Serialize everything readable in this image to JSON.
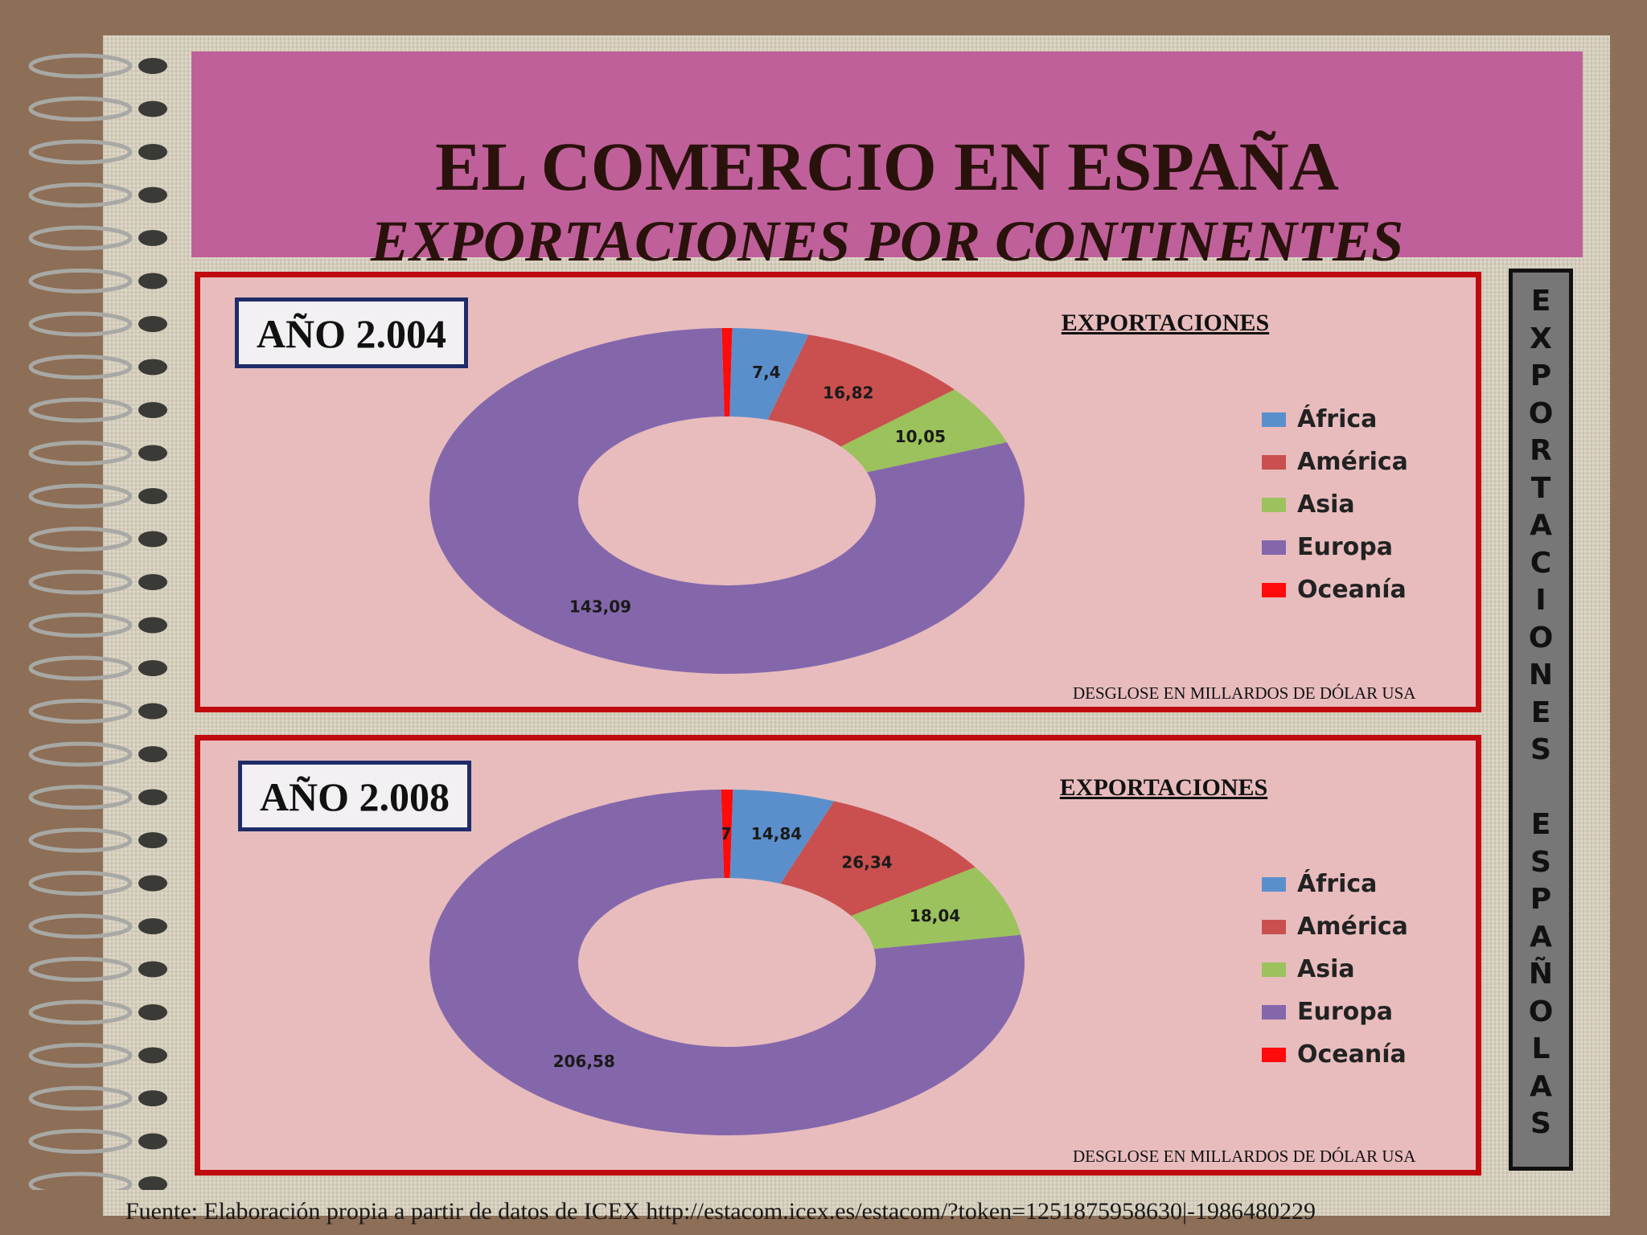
{
  "header": {
    "title": "EL COMERCIO EN ESPAÑA",
    "subtitle": "EXPORTACIONES POR CONTINENTES"
  },
  "sidebar_text": "EXPORTACIONES ESPAÑOLAS",
  "footer": "Fuente: Elaboración propia a partir de datos de ICEX http://estacom.icex.es/estacom/?token=1251875958630|-1986480229",
  "colors": {
    "África": "#5b8fcc",
    "América": "#c9504f",
    "Asia": "#9bc25c",
    "Europa": "#8467ab",
    "Oceanía": "#ff0b0b"
  },
  "chart_data": [
    {
      "type": "pie",
      "year_label": "AÑO 2.004",
      "title": "EXPORTACIONES",
      "note": "DESGLOSE EN MILLARDOS DE DÓLAR USA",
      "categories": [
        "África",
        "América",
        "Asia",
        "Europa",
        "Oceanía"
      ],
      "values": [
        7.4,
        16.82,
        10.05,
        143.09,
        1
      ],
      "value_labels": [
        "7,4",
        "16,82",
        "10,05",
        "143,09",
        "1"
      ]
    },
    {
      "type": "pie",
      "year_label": "AÑO 2.008",
      "title": "EXPORTACIONES",
      "note": "DESGLOSE EN MILLARDOS DE DÓLAR USA",
      "categories": [
        "África",
        "América",
        "Asia",
        "Europa",
        "Oceanía"
      ],
      "values": [
        14.84,
        26.34,
        18.04,
        206.58,
        1.7
      ],
      "value_labels": [
        "14,84",
        "26,34",
        "18,04",
        "206,58",
        "1,7"
      ]
    }
  ]
}
